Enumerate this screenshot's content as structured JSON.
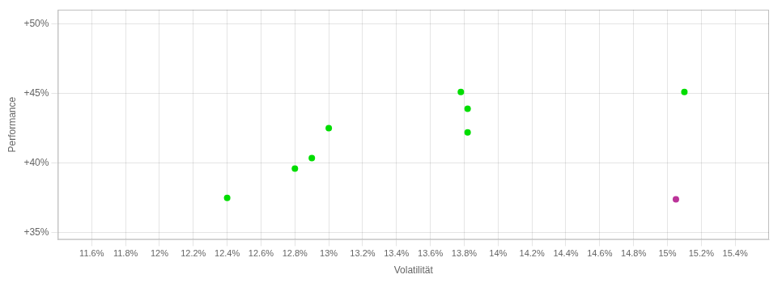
{
  "chart_data": {
    "type": "scatter",
    "xlabel": "Volatilität",
    "ylabel": "Performance",
    "series": [
      {
        "color": "#00dd00",
        "marker": "circle",
        "x": [
          12.4,
          12.8,
          12.9,
          13.0,
          13.78,
          13.82,
          13.82,
          15.1
        ],
        "values": [
          37.5,
          39.6,
          40.35,
          42.5,
          45.1,
          43.9,
          42.2,
          45.1
        ]
      },
      {
        "color": "#bb3399",
        "marker": "circle",
        "x": [
          15.05
        ],
        "values": [
          37.4
        ]
      }
    ],
    "xlim": [
      11.4,
      15.6
    ],
    "ylim": [
      34.5,
      51.0
    ],
    "xticks": [
      {
        "value": 11.6,
        "label": "11.6%"
      },
      {
        "value": 11.8,
        "label": "11.8%"
      },
      {
        "value": 12.0,
        "label": "12%"
      },
      {
        "value": 12.2,
        "label": "12.2%"
      },
      {
        "value": 12.4,
        "label": "12.4%"
      },
      {
        "value": 12.6,
        "label": "12.6%"
      },
      {
        "value": 12.8,
        "label": "12.8%"
      },
      {
        "value": 13.0,
        "label": "13%"
      },
      {
        "value": 13.2,
        "label": "13.2%"
      },
      {
        "value": 13.4,
        "label": "13.4%"
      },
      {
        "value": 13.6,
        "label": "13.6%"
      },
      {
        "value": 13.8,
        "label": "13.8%"
      },
      {
        "value": 14.0,
        "label": "14%"
      },
      {
        "value": 14.2,
        "label": "14.2%"
      },
      {
        "value": 14.4,
        "label": "14.4%"
      },
      {
        "value": 14.6,
        "label": "14.6%"
      },
      {
        "value": 14.8,
        "label": "14.8%"
      },
      {
        "value": 15.0,
        "label": "15%"
      },
      {
        "value": 15.2,
        "label": "15.2%"
      },
      {
        "value": 15.4,
        "label": "15.4%"
      }
    ],
    "yticks": [
      {
        "value": 35,
        "label": "+35%"
      },
      {
        "value": 40,
        "label": "+40%"
      },
      {
        "value": 45,
        "label": "+45%"
      },
      {
        "value": 50,
        "label": "+50%"
      }
    ],
    "grid": true
  }
}
